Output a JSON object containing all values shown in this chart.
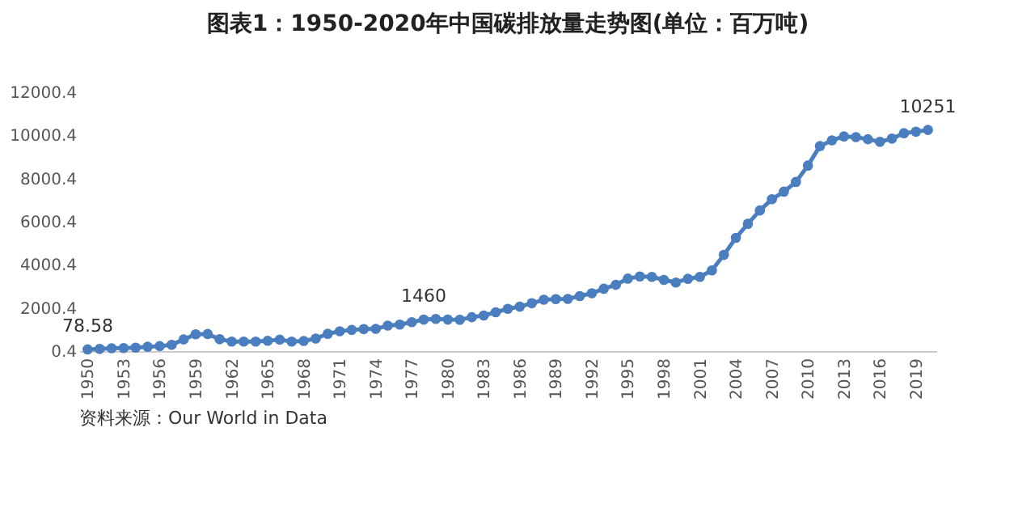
{
  "chart_data": {
    "type": "line",
    "title": "图表1：1950-2020年中国碳排放量走势图(单位：百万吨)",
    "x": [
      1950,
      1951,
      1952,
      1953,
      1954,
      1955,
      1956,
      1957,
      1958,
      1959,
      1960,
      1961,
      1962,
      1963,
      1964,
      1965,
      1966,
      1967,
      1968,
      1969,
      1970,
      1971,
      1972,
      1973,
      1974,
      1975,
      1976,
      1977,
      1978,
      1979,
      1980,
      1981,
      1982,
      1983,
      1984,
      1985,
      1986,
      1987,
      1988,
      1989,
      1990,
      1991,
      1992,
      1993,
      1994,
      1995,
      1996,
      1997,
      1998,
      1999,
      2000,
      2001,
      2002,
      2003,
      2004,
      2005,
      2006,
      2007,
      2008,
      2009,
      2010,
      2011,
      2012,
      2013,
      2014,
      2015,
      2016,
      2017,
      2018,
      2019,
      2020
    ],
    "series": [
      {
        "color": "#4a7ebf",
        "values": [
          78.58,
          100,
          130,
          140,
          160,
          200,
          230,
          290,
          540,
          780,
          790,
          550,
          440,
          440,
          440,
          480,
          530,
          440,
          470,
          580,
          800,
          920,
          980,
          1020,
          1030,
          1180,
          1230,
          1340,
          1460,
          1490,
          1460,
          1450,
          1570,
          1650,
          1800,
          1960,
          2060,
          2220,
          2380,
          2410,
          2420,
          2550,
          2680,
          2890,
          3070,
          3360,
          3460,
          3440,
          3300,
          3180,
          3350,
          3440,
          3740,
          4460,
          5250,
          5900,
          6520,
          7040,
          7390,
          7840,
          8600,
          9500,
          9770,
          9950,
          9920,
          9820,
          9700,
          9850,
          10100,
          10170,
          10251
        ],
        "value_labels": [
          "78.58",
          null,
          null,
          null,
          null,
          null,
          null,
          null,
          null,
          null,
          null,
          null,
          null,
          null,
          null,
          null,
          null,
          null,
          null,
          null,
          null,
          null,
          null,
          null,
          null,
          null,
          null,
          null,
          "1460",
          null,
          null,
          null,
          null,
          null,
          null,
          null,
          null,
          null,
          null,
          null,
          null,
          null,
          null,
          null,
          null,
          null,
          null,
          null,
          null,
          null,
          null,
          null,
          null,
          null,
          null,
          null,
          null,
          null,
          null,
          null,
          null,
          null,
          null,
          null,
          null,
          null,
          null,
          null,
          null,
          null,
          "10251"
        ]
      }
    ],
    "xlim": [
      1949.3,
      2020.7
    ],
    "xticks": [
      1950,
      1953,
      1956,
      1959,
      1962,
      1965,
      1968,
      1971,
      1974,
      1977,
      1980,
      1983,
      1986,
      1989,
      1992,
      1995,
      1998,
      2001,
      2004,
      2007,
      2010,
      2013,
      2016,
      2019
    ],
    "ylim": [
      0.4,
      12000.4
    ],
    "yticks": [
      0.4,
      2000.4,
      4000.4,
      6000.4,
      8000.4,
      10000.4,
      12000.4
    ],
    "grid": false,
    "marker": "circle",
    "line_style": "solid",
    "annotations": [
      "资料来源：Our World in Data"
    ]
  }
}
